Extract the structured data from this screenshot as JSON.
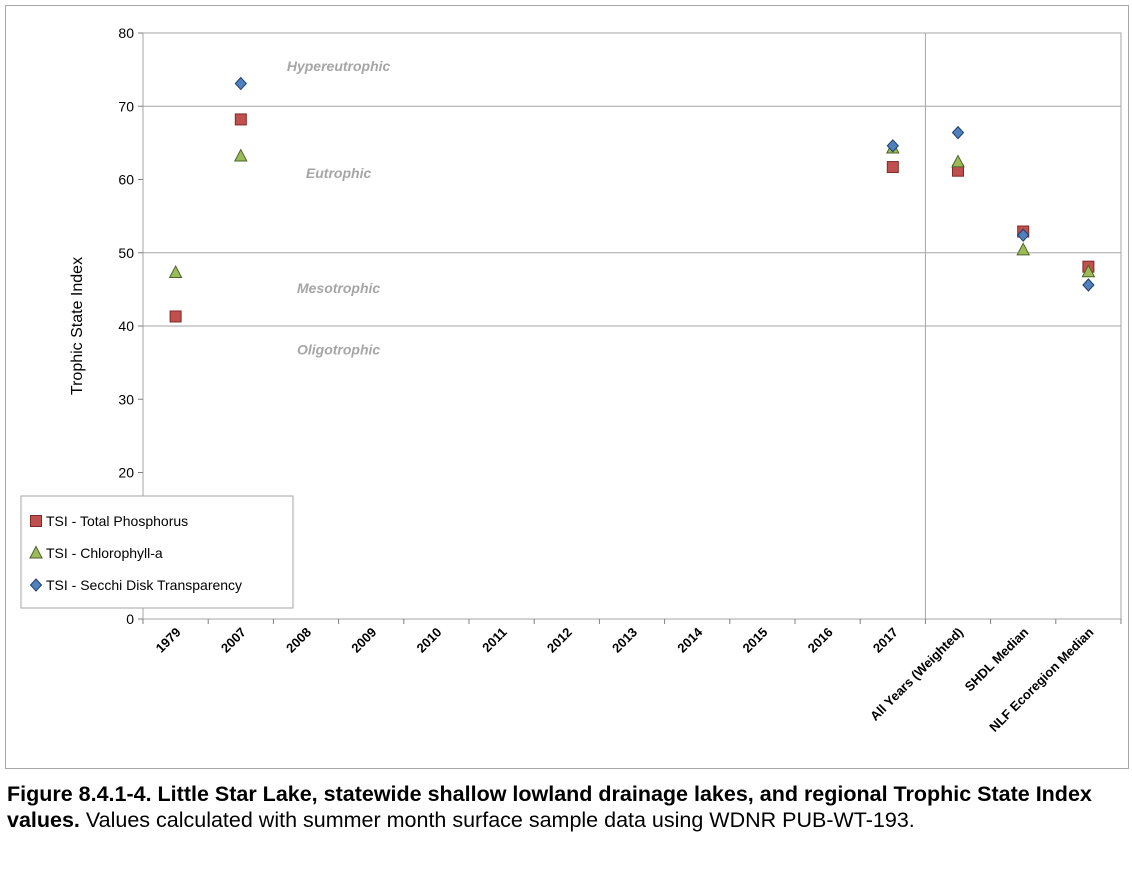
{
  "chart_data": {
    "type": "scatter",
    "ylabel": "Trophic State Index",
    "ylim": [
      0,
      80
    ],
    "yticks": [
      0,
      10,
      20,
      30,
      40,
      50,
      60,
      70,
      80
    ],
    "categories": [
      "1979",
      "2007",
      "2008",
      "2009",
      "2010",
      "2011",
      "2012",
      "2013",
      "2014",
      "2015",
      "2016",
      "2017",
      "All Years (Weighted)",
      "SHDL Median",
      "NLF Ecoregion Median"
    ],
    "divider_after_category": "2017",
    "horizontal_gridlines": [
      40,
      50,
      70
    ],
    "zones": [
      {
        "label": "Hypereutrophic",
        "y": 75.5
      },
      {
        "label": "Eutrophic",
        "y": 60.9
      },
      {
        "label": "Mesotrophic",
        "y": 45.2
      },
      {
        "label": "Oligotrophic",
        "y": 36.8
      }
    ],
    "legend_placement": "bottom-left",
    "series": [
      {
        "name": "TSI - Total Phosphorus",
        "marker": "square",
        "color": "#c0504d",
        "stroke": "#7f2a28",
        "values": [
          41.3,
          68.2,
          null,
          null,
          null,
          null,
          null,
          null,
          null,
          null,
          null,
          61.7,
          61.2,
          52.9,
          48.1
        ]
      },
      {
        "name": "TSI - Chlorophyll-a",
        "marker": "triangle",
        "color": "#9bbb59",
        "stroke": "#4f6228",
        "values": [
          47.3,
          63.2,
          null,
          null,
          null,
          null,
          null,
          null,
          null,
          null,
          null,
          64.3,
          62.4,
          50.4,
          47.4
        ]
      },
      {
        "name": "TSI - Secchi Disk Transparency",
        "marker": "diamond",
        "color": "#4f81bd",
        "stroke": "#1f3d6b",
        "values": [
          null,
          73.1,
          null,
          null,
          null,
          null,
          null,
          null,
          null,
          null,
          null,
          64.6,
          66.4,
          52.4,
          45.6
        ]
      }
    ]
  },
  "caption": {
    "bold": "Figure 8.4.1-4.  Little Star Lake, statewide shallow lowland drainage lakes, and regional Trophic State Index values.",
    "normal": "  Values calculated with summer month surface sample data using WDNR PUB-WT-193."
  }
}
